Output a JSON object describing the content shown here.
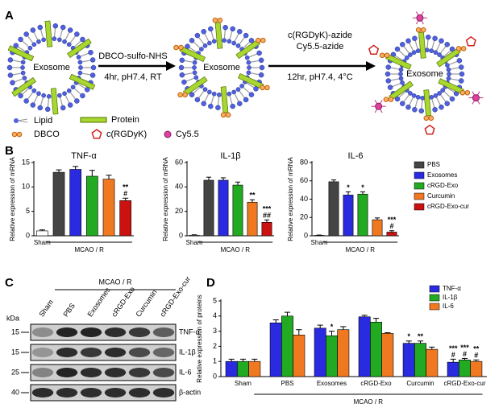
{
  "panels": {
    "a": "A",
    "b": "B",
    "c": "C",
    "d": "D"
  },
  "scheme": {
    "exosome": "Exosome",
    "step1": [
      "DBCO-sulfo-NHS",
      "4hr, pH7.4, RT"
    ],
    "step2": [
      "c(RGDyK)-azide",
      "Cy5.5-azide",
      "12hr, pH7.4, 4°C"
    ],
    "legend": [
      "Lipid",
      "Protein",
      "DBCO",
      "c(RGDyK)",
      "Cy5.5"
    ]
  },
  "blot": {
    "unit": "kDa",
    "group_label": "MCAO / R",
    "lanes": [
      "Sham",
      "PBS",
      "Exosomes",
      "cRGD-Exo",
      "Curcumin",
      "cRGD-Exo-cur"
    ],
    "rows": [
      {
        "marker": "15",
        "label": "TNF-α"
      },
      {
        "marker": "15",
        "label": "IL-1β"
      },
      {
        "marker": "25",
        "label": "IL-6"
      },
      {
        "marker": "40",
        "label": "β-actin"
      }
    ]
  },
  "chart_data": [
    {
      "type": "bar",
      "title": "TNF-α",
      "ylabel": "Relative expression of mRNA",
      "group_label": "MCAO / R",
      "categories": [
        "Sham",
        null,
        null,
        null,
        null,
        null
      ],
      "values": [
        1.0,
        13.0,
        13.6,
        12.2,
        11.6,
        7.2
      ],
      "errors": [
        0.2,
        0.5,
        0.6,
        1.2,
        0.8,
        0.5
      ],
      "colors": [
        "#ffffff",
        "#444444",
        "#2a2ae0",
        "#22aa22",
        "#f07820",
        "#cc1111"
      ],
      "annotations": [
        null,
        null,
        null,
        null,
        null,
        [
          "**",
          "#"
        ]
      ],
      "ylim": [
        0,
        15
      ],
      "yticks": [
        0,
        5,
        10,
        15
      ]
    },
    {
      "type": "bar",
      "title": "IL-1β",
      "ylabel": "Relative expression of mRNA",
      "group_label": "MCAO / R",
      "categories": [
        "Sham",
        null,
        null,
        null,
        null,
        null
      ],
      "values": [
        0.5,
        45.5,
        45.5,
        41.5,
        27.5,
        11
      ],
      "errors": [
        0.3,
        2.5,
        2,
        2.5,
        2,
        2
      ],
      "colors": [
        "#ffffff",
        "#444444",
        "#2a2ae0",
        "#22aa22",
        "#f07820",
        "#cc1111"
      ],
      "annotations": [
        null,
        null,
        null,
        null,
        [
          "**"
        ],
        [
          "***",
          "##"
        ]
      ],
      "ylim": [
        0,
        60
      ],
      "yticks": [
        0,
        20,
        40,
        60
      ]
    },
    {
      "type": "bar",
      "title": "IL-6",
      "ylabel": "Relative expression of mRNA",
      "group_label": "MCAO / R",
      "categories": [
        "Sham",
        null,
        null,
        null,
        null,
        null
      ],
      "values": [
        0.5,
        59,
        44.5,
        45.5,
        17.5,
        4
      ],
      "errors": [
        0.3,
        2,
        3.5,
        2.5,
        2,
        1.5
      ],
      "colors": [
        "#ffffff",
        "#444444",
        "#2a2ae0",
        "#22aa22",
        "#f07820",
        "#cc1111"
      ],
      "annotations": [
        null,
        null,
        [
          "*"
        ],
        [
          "*"
        ],
        null,
        [
          "***",
          "#"
        ]
      ],
      "ylim": [
        0,
        80
      ],
      "yticks": [
        0,
        20,
        40,
        60,
        80
      ],
      "legend": [
        {
          "name": "PBS",
          "color": "#444444"
        },
        {
          "name": "Exosomes",
          "color": "#2a2ae0"
        },
        {
          "name": "cRGD-Exo",
          "color": "#22aa22"
        },
        {
          "name": "Curcumin",
          "color": "#f07820"
        },
        {
          "name": "cRGD-Exo-cur",
          "color": "#cc1111"
        }
      ]
    },
    {
      "type": "bar",
      "ylabel": "Relative expression of proteins",
      "group_label": "MCAO / R",
      "categories": [
        "Sham",
        "PBS",
        "Exosomes",
        "cRGD-Exo",
        "Curcumin",
        "cRGD-Exo-cur"
      ],
      "series": [
        {
          "name": "TNF-α",
          "color": "#2a2ae0",
          "values": [
            1.0,
            3.55,
            3.2,
            3.95,
            2.2,
            0.95
          ],
          "errors": [
            0.15,
            0.2,
            0.2,
            0.1,
            0.15,
            0.2
          ],
          "annotations": [
            null,
            null,
            null,
            null,
            [
              "*"
            ],
            [
              "***",
              "#"
            ]
          ]
        },
        {
          "name": "IL-1β",
          "color": "#22aa22",
          "values": [
            1.0,
            4.0,
            2.7,
            3.6,
            2.2,
            1.1
          ],
          "errors": [
            0.15,
            0.25,
            0.3,
            0.25,
            0.15,
            0.1
          ],
          "annotations": [
            null,
            null,
            [
              "*"
            ],
            null,
            [
              "**"
            ],
            [
              "***",
              "#"
            ]
          ]
        },
        {
          "name": "IL-6",
          "color": "#f07820",
          "values": [
            1.0,
            2.75,
            3.1,
            2.85,
            1.8,
            1.0
          ],
          "errors": [
            0.15,
            0.35,
            0.2,
            0.05,
            0.15,
            0.1
          ],
          "annotations": [
            null,
            null,
            null,
            null,
            null,
            [
              "**",
              "#"
            ]
          ]
        }
      ],
      "ylim": [
        0,
        5
      ],
      "yticks": [
        0,
        1,
        2,
        3,
        4,
        5
      ],
      "legend_position": "upper right"
    }
  ]
}
